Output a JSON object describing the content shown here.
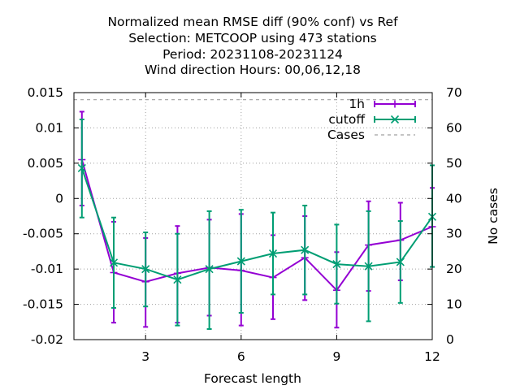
{
  "chart_data": {
    "type": "line",
    "title": [
      "Normalized mean RMSE diff (90% conf) vs Ref",
      "Selection: METCOOP using   473 stations",
      "Period: 20231108-20231124",
      "Wind direction   Hours:  00,06,12,18"
    ],
    "xlabel": "Forecast length",
    "ylabel": "",
    "y2label": "No cases",
    "xlim": [
      0.75,
      12
    ],
    "ylim": [
      -0.02,
      0.015
    ],
    "y2lim": [
      0,
      70
    ],
    "xticks": [
      3,
      6,
      9,
      12
    ],
    "yticks": [
      0.015,
      0.01,
      0.005,
      0,
      -0.005,
      -0.01,
      -0.015,
      -0.02
    ],
    "ytick_labels": [
      "0.015",
      "0.01",
      "0.005",
      "0",
      "-0.005",
      "-0.01",
      "-0.015",
      "-0.02"
    ],
    "y2ticks": [
      70,
      60,
      50,
      40,
      30,
      20,
      10,
      0
    ],
    "grid": true,
    "legend_position": "top-right",
    "series": [
      {
        "name": "1h",
        "color": "#9400d3",
        "marker": "plus",
        "x": [
          1,
          2,
          3,
          4,
          5,
          6,
          7,
          8,
          9,
          10,
          11,
          12
        ],
        "y": [
          0.0055,
          -0.0105,
          -0.0118,
          -0.0106,
          -0.0098,
          -0.0102,
          -0.0112,
          -0.0084,
          -0.013,
          -0.0066,
          -0.0059,
          -0.004
        ],
        "err_low": [
          -0.001,
          -0.0176,
          -0.0182,
          -0.0176,
          -0.0166,
          -0.018,
          -0.0171,
          -0.0144,
          -0.0183,
          -0.0131,
          -0.0116,
          -0.0097
        ],
        "err_high": [
          0.0123,
          -0.0033,
          -0.0056,
          -0.0039,
          -0.003,
          -0.0022,
          -0.0052,
          -0.0025,
          -0.0076,
          -0.0004,
          -0.0006,
          0.0015
        ]
      },
      {
        "name": "cutoff",
        "color": "#009e73",
        "marker": "cross",
        "x": [
          1,
          2,
          3,
          4,
          5,
          6,
          7,
          8,
          9,
          10,
          11,
          12
        ],
        "y": [
          0.0043,
          -0.0091,
          -0.01,
          -0.0115,
          -0.01,
          -0.0089,
          -0.0078,
          -0.0073,
          -0.0093,
          -0.0096,
          -0.009,
          -0.0026
        ],
        "err_low": [
          -0.0027,
          -0.0155,
          -0.0153,
          -0.018,
          -0.0185,
          -0.0162,
          -0.0136,
          -0.0136,
          -0.0149,
          -0.0174,
          -0.0148,
          -0.0097
        ],
        "err_high": [
          0.0112,
          -0.0027,
          -0.0048,
          -0.005,
          -0.0018,
          -0.0016,
          -0.002,
          -0.001,
          -0.0037,
          -0.0018,
          -0.0032,
          0.0047
        ]
      },
      {
        "name": "Cases",
        "color": "#a0a0a0",
        "style": "dashed",
        "axis": "y2",
        "x": [
          0.75,
          12
        ],
        "y": [
          68,
          68
        ]
      }
    ]
  }
}
